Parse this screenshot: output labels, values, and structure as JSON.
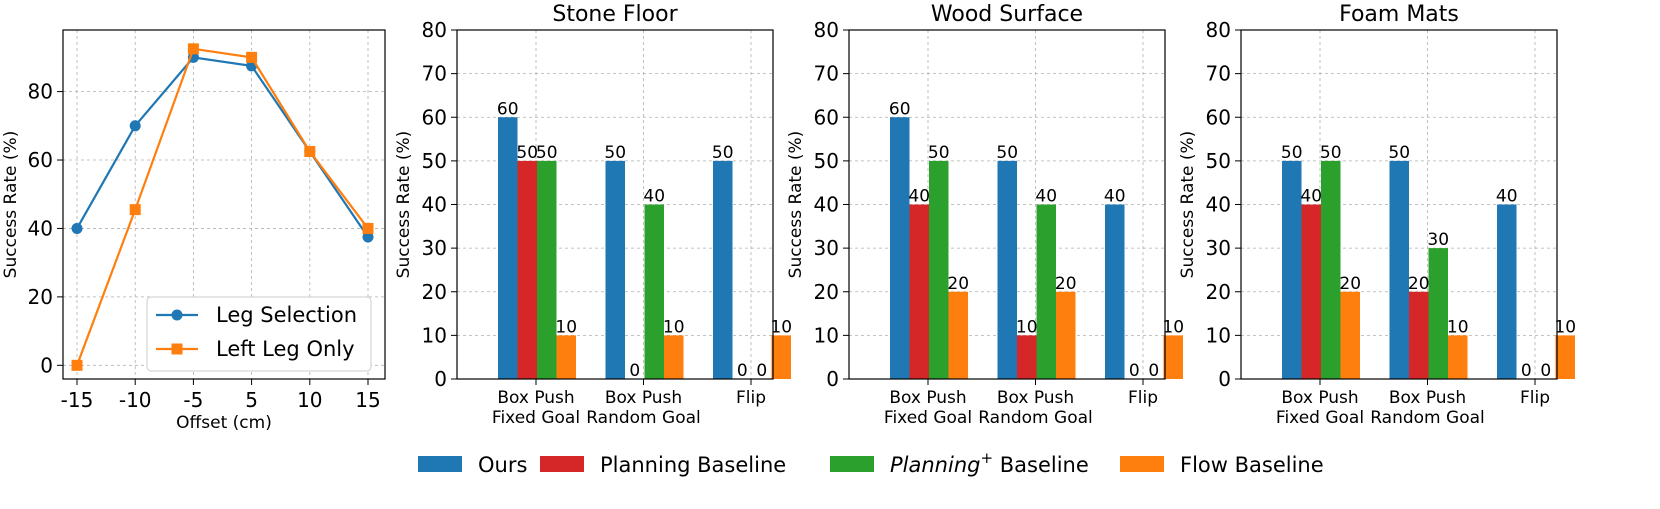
{
  "chart_data": [
    {
      "type": "line",
      "title": "",
      "xlabel": "Offset (cm)",
      "ylabel": "Success Rate (%)",
      "categories": [
        "-15",
        "-10",
        "-5",
        "5",
        "10",
        "15"
      ],
      "ylim": [
        -4,
        98
      ],
      "yticks": [
        0,
        20,
        40,
        60,
        80
      ],
      "grid": true,
      "legend_position": "lower-right",
      "series": [
        {
          "name": "Leg Selection",
          "color": "#1f77b4",
          "marker": "circle",
          "values": [
            40,
            70,
            90,
            87.5,
            62.5,
            37.5
          ]
        },
        {
          "name": "Left Leg Only",
          "color": "#ff7f0e",
          "marker": "square",
          "values": [
            0,
            45.5,
            92.5,
            90,
            62.5,
            40
          ]
        }
      ]
    },
    {
      "type": "bar",
      "title": "Stone Floor",
      "ylabel": "Success Rate (%)",
      "categories": [
        "Box Push\nFixed Goal",
        "Box Push\nRandom Goal",
        "Flip"
      ],
      "ylim": [
        0,
        80
      ],
      "yticks": [
        0,
        10,
        20,
        30,
        40,
        50,
        60,
        70,
        80
      ],
      "grid": true,
      "series": [
        {
          "name": "Ours",
          "values": [
            60,
            50,
            50
          ]
        },
        {
          "name": "Planning Baseline",
          "values": [
            50,
            0,
            0
          ]
        },
        {
          "name": "Planning+ Baseline",
          "values": [
            50,
            40,
            0
          ]
        },
        {
          "name": "Flow Baseline",
          "values": [
            10,
            10,
            10
          ]
        }
      ]
    },
    {
      "type": "bar",
      "title": "Wood Surface",
      "ylabel": "Success Rate (%)",
      "categories": [
        "Box Push\nFixed Goal",
        "Box Push\nRandom Goal",
        "Flip"
      ],
      "ylim": [
        0,
        80
      ],
      "yticks": [
        0,
        10,
        20,
        30,
        40,
        50,
        60,
        70,
        80
      ],
      "grid": true,
      "series": [
        {
          "name": "Ours",
          "values": [
            60,
            50,
            40
          ]
        },
        {
          "name": "Planning Baseline",
          "values": [
            40,
            10,
            0
          ]
        },
        {
          "name": "Planning+ Baseline",
          "values": [
            50,
            40,
            0
          ]
        },
        {
          "name": "Flow Baseline",
          "values": [
            20,
            20,
            10
          ]
        }
      ]
    },
    {
      "type": "bar",
      "title": "Foam Mats",
      "ylabel": "Success Rate (%)",
      "categories": [
        "Box Push\nFixed Goal",
        "Box Push\nRandom Goal",
        "Flip"
      ],
      "ylim": [
        0,
        80
      ],
      "yticks": [
        0,
        10,
        20,
        30,
        40,
        50,
        60,
        70,
        80
      ],
      "grid": true,
      "series": [
        {
          "name": "Ours",
          "values": [
            50,
            50,
            40
          ]
        },
        {
          "name": "Planning Baseline",
          "values": [
            40,
            20,
            0
          ]
        },
        {
          "name": "Planning+ Baseline",
          "values": [
            50,
            30,
            0
          ]
        },
        {
          "name": "Flow Baseline",
          "values": [
            20,
            10,
            10
          ]
        }
      ]
    }
  ],
  "legend": [
    {
      "name": "Ours",
      "color": "#1f77b4",
      "italic_part": "",
      "text": "Ours"
    },
    {
      "name": "Planning Baseline",
      "color": "#d62728",
      "italic_part": "",
      "text": "Planning Baseline"
    },
    {
      "name": "Planning+ Baseline",
      "color": "#2ca02c",
      "italic_part": "Planning",
      "superscript": "+",
      "text": " Baseline"
    },
    {
      "name": "Flow Baseline",
      "color": "#ff7f0e",
      "italic_part": "",
      "text": "Flow Baseline"
    }
  ],
  "bar_colors": [
    "#1f77b4",
    "#d62728",
    "#2ca02c",
    "#ff7f0e"
  ]
}
